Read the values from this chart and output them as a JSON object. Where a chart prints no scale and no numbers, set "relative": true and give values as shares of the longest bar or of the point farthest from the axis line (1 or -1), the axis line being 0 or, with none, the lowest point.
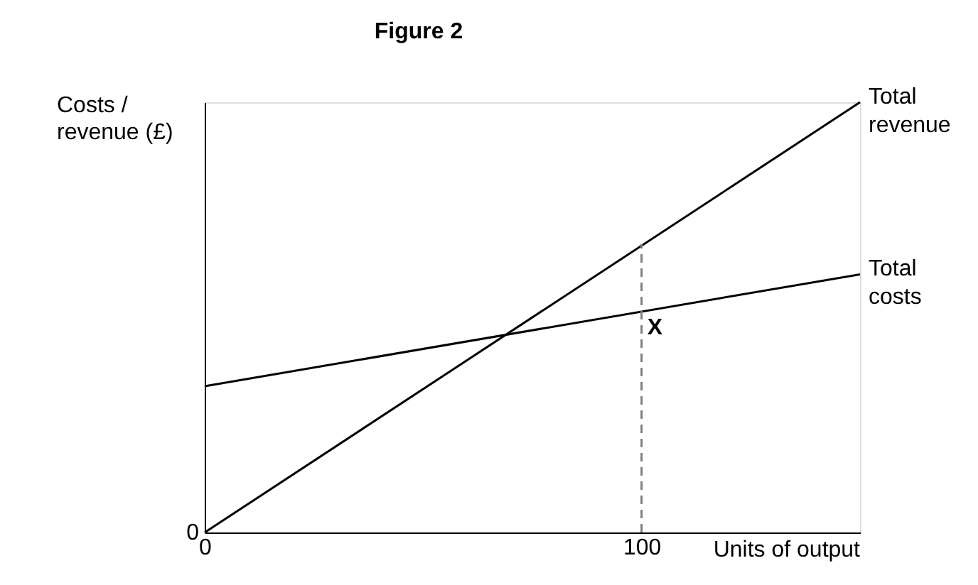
{
  "chart_data": {
    "type": "line",
    "title": "Figure 2",
    "xlabel": "Units of output",
    "ylabel": "Costs /\nrevenue (£)",
    "relative": true,
    "xlim": [
      0,
      150
    ],
    "xticks": [
      0,
      100
    ],
    "grid": false,
    "marker": "none",
    "series": [
      {
        "name": "Total\nrevenue",
        "color": "#000000",
        "x": [
          0,
          150
        ],
        "values": [
          0,
          1
        ]
      },
      {
        "name": "Total\ncosts",
        "color": "#000000",
        "x": [
          0,
          150
        ],
        "values": [
          0.34,
          0.6
        ]
      },
      {
        "color": "#808080",
        "x": [
          100,
          100
        ],
        "values": [
          0,
          0.67
        ],
        "line_style": "dashed"
      }
    ],
    "annotations": [
      {
        "text": "X",
        "x": 100,
        "y": 0.51
      },
      {
        "text": "0",
        "x": 0,
        "y": 0
      }
    ]
  }
}
